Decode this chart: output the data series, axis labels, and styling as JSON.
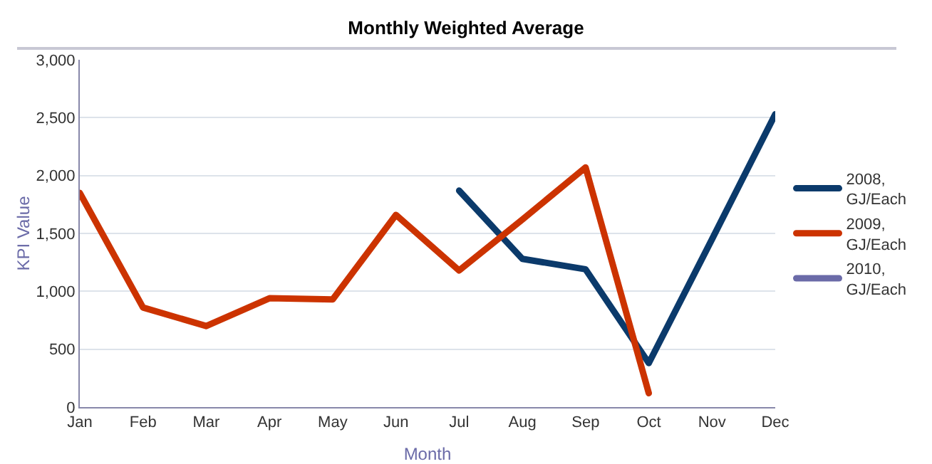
{
  "chart_data": {
    "type": "line",
    "title": "Monthly Weighted Average",
    "xlabel": "Month",
    "ylabel": "KPI Value",
    "categories": [
      "Jan",
      "Feb",
      "Mar",
      "Apr",
      "May",
      "Jun",
      "Jul",
      "Aug",
      "Sep",
      "Oct",
      "Nov",
      "Dec"
    ],
    "series": [
      {
        "name": "2008, GJ/Each",
        "color": "#0b3a6b",
        "values": [
          null,
          null,
          null,
          null,
          null,
          null,
          1870,
          1280,
          1190,
          380,
          1450,
          2530
        ]
      },
      {
        "name": "2009, GJ/Each",
        "color": "#cc3300",
        "values": [
          1850,
          860,
          700,
          940,
          930,
          1660,
          1180,
          1620,
          2070,
          120,
          null,
          null
        ]
      },
      {
        "name": "2010, GJ/Each",
        "color": "#6b6ba8",
        "values": [
          null,
          null,
          null,
          null,
          null,
          null,
          null,
          null,
          null,
          null,
          null,
          null
        ]
      }
    ],
    "ylim": [
      0,
      3000
    ],
    "yticks": [
      {
        "value": 0,
        "label": "0"
      },
      {
        "value": 500,
        "label": "500"
      },
      {
        "value": 1000,
        "label": "1,000"
      },
      {
        "value": 1500,
        "label": "1,500"
      },
      {
        "value": 2000,
        "label": "2,000"
      },
      {
        "value": 2500,
        "label": "2,500"
      },
      {
        "value": 3000,
        "label": "3,000"
      }
    ],
    "grid": "y",
    "legend": "right",
    "marker": "none",
    "line_style": "solid"
  }
}
